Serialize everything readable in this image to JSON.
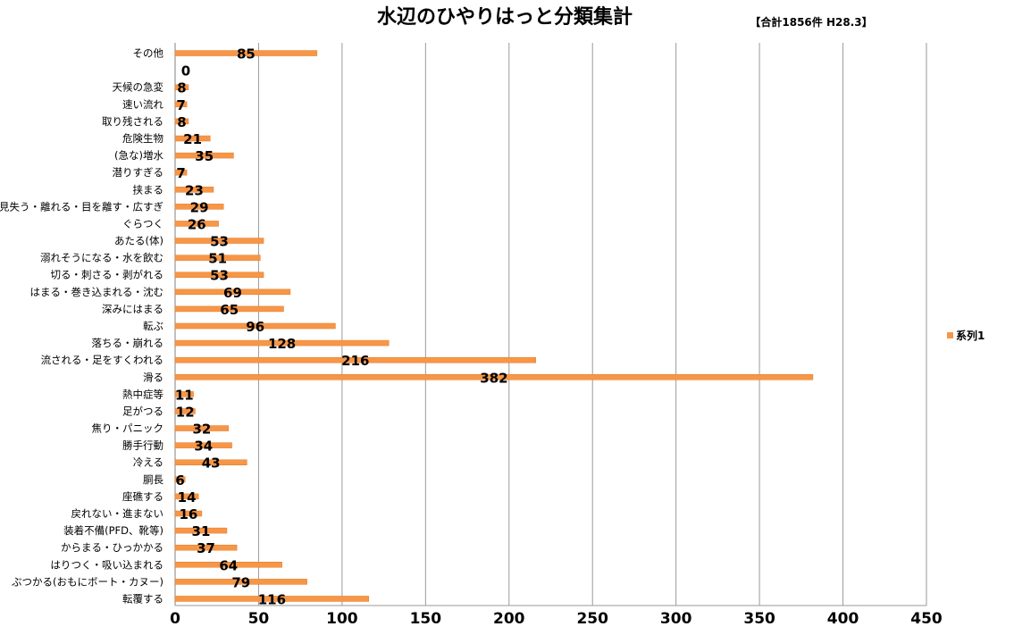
{
  "chart_data": {
    "type": "bar",
    "orientation": "horizontal",
    "title": "水辺のひやりはっと分類集計",
    "subtitle": "【合計1856件 H28.3】",
    "categories": [
      "その他",
      "",
      "天候の急変",
      "速い流れ",
      "取り残される",
      "危険生物",
      "(急な)増水",
      "潜りすぎる",
      "挟まる",
      "見失う・離れる・目を離す・広すぎ",
      "ぐらつく",
      "あたる(体)",
      "溺れそうになる・水を飲む",
      "切る・刺さる・剥がれる",
      "はまる・巻き込まれる・沈む",
      "深みにはまる",
      "転ぶ",
      "落ちる・崩れる",
      "流される・足をすくわれる",
      "滑る",
      "熱中症等",
      "足がつる",
      "焦り・パニック",
      "勝手行動",
      "冷える",
      "胴長",
      "座礁する",
      "戻れない・進まない",
      "装着不備(PFD、靴等)",
      "からまる・ひっかかる",
      "はりつく・吸い込まれる",
      "ぶつかる(おもにボート・カヌー)",
      "転覆する"
    ],
    "series": [
      {
        "name": "系列1",
        "values": [
          85,
          0,
          8,
          7,
          8,
          21,
          35,
          7,
          23,
          29,
          26,
          53,
          51,
          53,
          69,
          65,
          96,
          128,
          216,
          382,
          11,
          12,
          32,
          34,
          43,
          6,
          14,
          16,
          31,
          37,
          64,
          79,
          116
        ],
        "color": "#F79646"
      }
    ],
    "xlim": [
      0,
      450
    ],
    "xticks": [
      0,
      50,
      100,
      150,
      200,
      250,
      300,
      350,
      400,
      450
    ],
    "grid": "vertical",
    "legend_position": "right"
  }
}
